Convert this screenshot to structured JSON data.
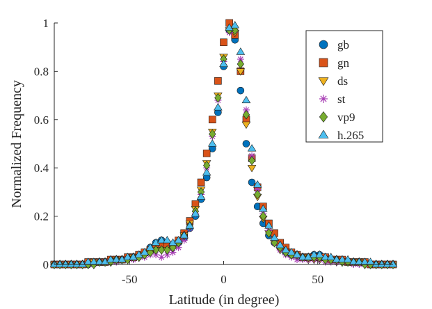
{
  "chart_data": {
    "type": "scatter",
    "title": "",
    "xlabel": "Latitude (in degree)",
    "ylabel": "Normalized Frequency",
    "xlim": [
      -90,
      90
    ],
    "ylim": [
      0,
      1
    ],
    "xticks": [
      -50,
      0,
      50
    ],
    "xtick_labels": [
      "-50",
      "0",
      "50"
    ],
    "yticks": [
      0,
      0.2,
      0.4,
      0.6,
      0.8,
      1
    ],
    "ytick_labels": [
      "0",
      "0.2",
      "0.4",
      "0.6",
      "0.8",
      "1"
    ],
    "grid": false,
    "legend_position": "top-right",
    "x": [
      -90,
      -87,
      -84,
      -81,
      -78,
      -75,
      -72,
      -69,
      -66,
      -63,
      -60,
      -57,
      -54,
      -51,
      -48,
      -45,
      -42,
      -39,
      -36,
      -33,
      -30,
      -27,
      -24,
      -21,
      -18,
      -15,
      -12,
      -9,
      -6,
      -3,
      0,
      3,
      6,
      9,
      12,
      15,
      18,
      21,
      24,
      27,
      30,
      33,
      36,
      39,
      42,
      45,
      48,
      51,
      54,
      57,
      60,
      63,
      66,
      69,
      72,
      75,
      78,
      81,
      84,
      87,
      90
    ],
    "series": [
      {
        "name": "gb",
        "marker": "circle",
        "color": "#0072BD",
        "values": [
          0.0,
          0.0,
          0.0,
          0.0,
          0.0,
          0.0,
          0.0,
          0.01,
          0.01,
          0.01,
          0.02,
          0.02,
          0.02,
          0.03,
          0.03,
          0.04,
          0.05,
          0.07,
          0.09,
          0.1,
          0.09,
          0.08,
          0.09,
          0.11,
          0.15,
          0.2,
          0.27,
          0.36,
          0.48,
          0.63,
          0.82,
          0.97,
          0.93,
          0.72,
          0.5,
          0.34,
          0.24,
          0.17,
          0.12,
          0.09,
          0.07,
          0.05,
          0.04,
          0.04,
          0.03,
          0.03,
          0.04,
          0.04,
          0.03,
          0.02,
          0.02,
          0.02,
          0.01,
          0.01,
          0.01,
          0.01,
          0.0,
          0.0,
          0.0,
          0.0,
          0.0
        ]
      },
      {
        "name": "gn",
        "marker": "square",
        "color": "#D95319",
        "values": [
          0.0,
          0.0,
          0.0,
          0.0,
          0.0,
          0.0,
          0.01,
          0.01,
          0.01,
          0.01,
          0.02,
          0.02,
          0.02,
          0.03,
          0.03,
          0.04,
          0.05,
          0.06,
          0.07,
          0.08,
          0.08,
          0.08,
          0.1,
          0.13,
          0.18,
          0.25,
          0.34,
          0.46,
          0.6,
          0.76,
          0.92,
          1.0,
          0.95,
          0.8,
          0.6,
          0.44,
          0.32,
          0.24,
          0.17,
          0.13,
          0.09,
          0.07,
          0.05,
          0.04,
          0.03,
          0.03,
          0.03,
          0.03,
          0.03,
          0.02,
          0.02,
          0.02,
          0.01,
          0.01,
          0.01,
          0.01,
          0.0,
          0.0,
          0.0,
          0.0,
          0.0
        ]
      },
      {
        "name": "ds",
        "marker": "triangle-down",
        "color": "#EDB120",
        "values": [
          0.0,
          0.0,
          0.0,
          0.0,
          0.0,
          0.0,
          0.0,
          0.01,
          0.01,
          0.01,
          0.01,
          0.02,
          0.02,
          0.02,
          0.03,
          0.03,
          0.04,
          0.05,
          0.06,
          0.06,
          0.06,
          0.07,
          0.09,
          0.12,
          0.17,
          0.23,
          0.31,
          0.42,
          0.55,
          0.7,
          0.86,
          0.97,
          0.96,
          0.8,
          0.58,
          0.4,
          0.28,
          0.19,
          0.13,
          0.09,
          0.06,
          0.05,
          0.04,
          0.03,
          0.03,
          0.02,
          0.02,
          0.02,
          0.02,
          0.02,
          0.01,
          0.01,
          0.01,
          0.01,
          0.01,
          0.0,
          0.0,
          0.0,
          0.0,
          0.0,
          0.0
        ]
      },
      {
        "name": "st",
        "marker": "asterisk",
        "color": "#A83FB5",
        "values": [
          0.0,
          0.0,
          0.0,
          0.0,
          0.0,
          0.0,
          0.0,
          0.0,
          0.01,
          0.01,
          0.01,
          0.01,
          0.02,
          0.02,
          0.02,
          0.03,
          0.03,
          0.04,
          0.04,
          0.03,
          0.04,
          0.05,
          0.07,
          0.1,
          0.15,
          0.21,
          0.29,
          0.4,
          0.53,
          0.68,
          0.84,
          0.96,
          0.97,
          0.85,
          0.64,
          0.45,
          0.31,
          0.21,
          0.14,
          0.09,
          0.06,
          0.04,
          0.03,
          0.02,
          0.02,
          0.02,
          0.02,
          0.02,
          0.01,
          0.01,
          0.01,
          0.01,
          0.01,
          0.0,
          0.0,
          0.0,
          0.0,
          0.0,
          0.0,
          0.0,
          0.0
        ]
      },
      {
        "name": "vp9",
        "marker": "diamond",
        "color": "#77AC30",
        "values": [
          0.0,
          0.0,
          0.0,
          0.0,
          0.0,
          0.0,
          0.0,
          0.0,
          0.01,
          0.01,
          0.01,
          0.02,
          0.02,
          0.02,
          0.03,
          0.03,
          0.04,
          0.05,
          0.06,
          0.06,
          0.06,
          0.07,
          0.09,
          0.12,
          0.16,
          0.22,
          0.3,
          0.41,
          0.54,
          0.69,
          0.85,
          0.97,
          0.97,
          0.83,
          0.62,
          0.43,
          0.29,
          0.2,
          0.13,
          0.09,
          0.07,
          0.05,
          0.04,
          0.04,
          0.03,
          0.03,
          0.03,
          0.03,
          0.02,
          0.02,
          0.02,
          0.01,
          0.01,
          0.01,
          0.01,
          0.0,
          0.0,
          0.0,
          0.0,
          0.0,
          0.0
        ]
      },
      {
        "name": "h.265",
        "marker": "triangle-up",
        "color": "#4DBEEE",
        "values": [
          0.0,
          0.0,
          0.0,
          0.0,
          0.0,
          0.0,
          0.01,
          0.01,
          0.01,
          0.01,
          0.02,
          0.02,
          0.02,
          0.03,
          0.03,
          0.04,
          0.05,
          0.07,
          0.09,
          0.1,
          0.1,
          0.09,
          0.1,
          0.12,
          0.16,
          0.21,
          0.28,
          0.38,
          0.5,
          0.65,
          0.83,
          0.98,
          0.99,
          0.88,
          0.68,
          0.48,
          0.33,
          0.23,
          0.16,
          0.11,
          0.08,
          0.06,
          0.05,
          0.04,
          0.03,
          0.03,
          0.04,
          0.04,
          0.03,
          0.03,
          0.02,
          0.02,
          0.02,
          0.01,
          0.01,
          0.01,
          0.01,
          0.0,
          0.0,
          0.0,
          0.0
        ]
      }
    ]
  }
}
